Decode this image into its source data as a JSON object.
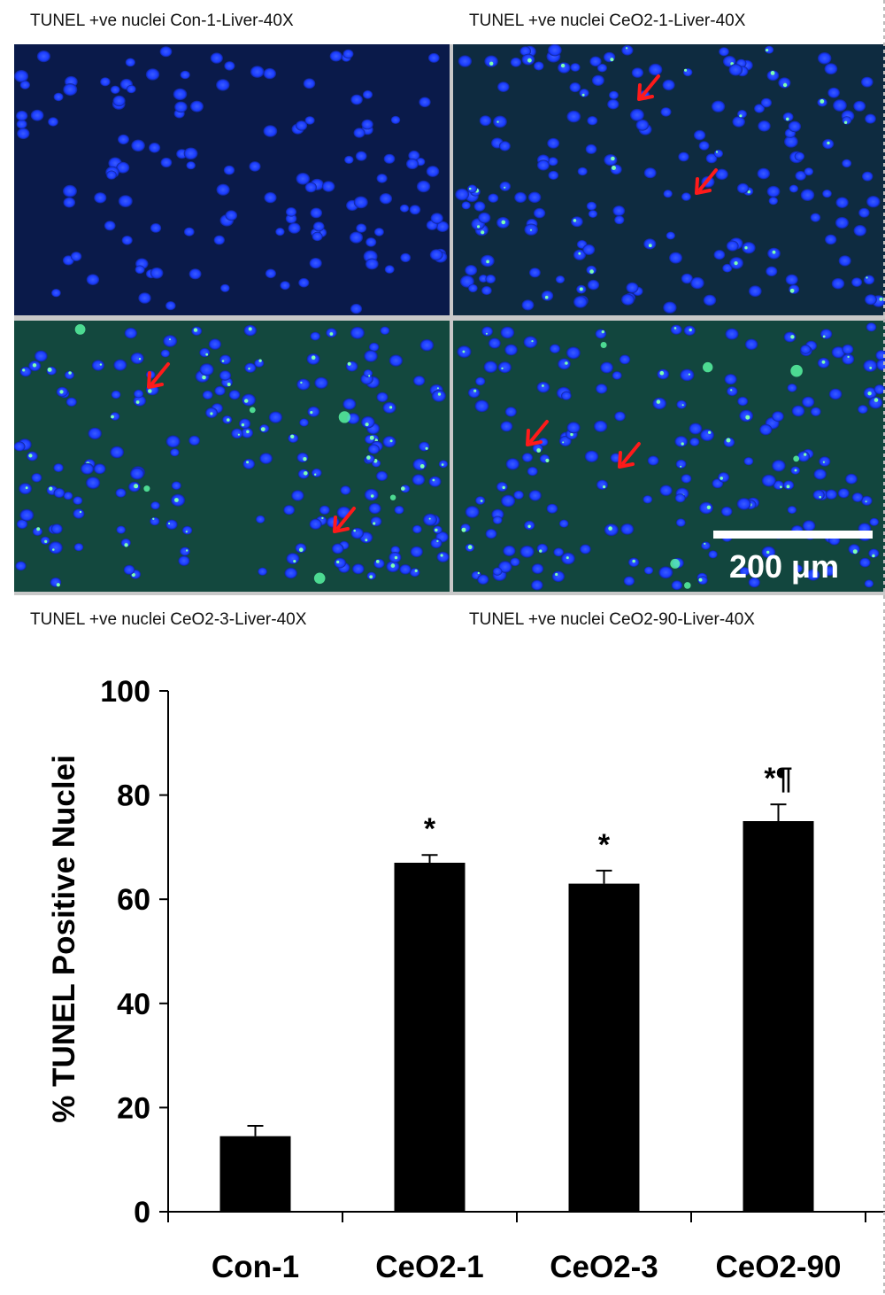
{
  "panels": [
    {
      "caption": "TUNEL +ve nuclei Con-1-Liver-40X",
      "arrows": 0,
      "green_level": 0.05
    },
    {
      "caption": "TUNEL +ve nuclei CeO2-1-Liver-40X",
      "arrows": 2,
      "green_level": 0.45
    },
    {
      "caption": "TUNEL +ve nuclei CeO2-3-Liver-40X",
      "arrows": 2,
      "green_level": 0.85
    },
    {
      "caption": "TUNEL +ve nuclei CeO2-90-Liver-40X",
      "arrows": 2,
      "green_level": 0.7
    }
  ],
  "scale_bar_label": "200 μm",
  "colors": {
    "nuclei": "#1a3cff",
    "arrow": "#ff1a1a",
    "bar": "#000000"
  },
  "chart_data": {
    "type": "bar",
    "title": "",
    "xlabel": "",
    "ylabel": "% TUNEL Positive Nuclei",
    "categories": [
      "Con-1",
      "CeO2-1",
      "CeO2-3",
      "CeO2-90"
    ],
    "values": [
      14.5,
      67,
      63,
      75
    ],
    "errors": [
      2,
      1.5,
      2.5,
      3.2
    ],
    "annotations": [
      "",
      "*",
      "*",
      "*¶"
    ],
    "ylim": [
      0,
      100
    ],
    "yticks": [
      0,
      20,
      40,
      60,
      80,
      100
    ],
    "grid": false
  }
}
